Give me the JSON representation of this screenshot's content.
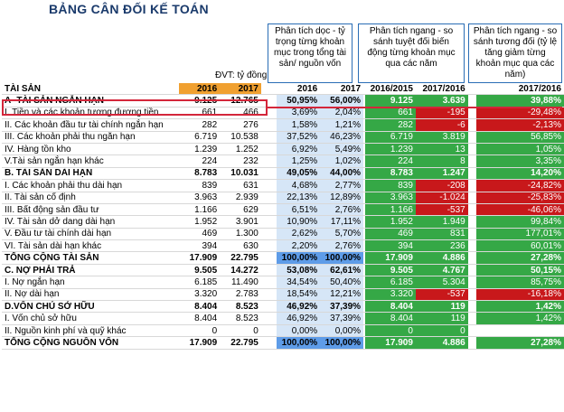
{
  "title": "BẢNG CÂN ĐỐI KẾ TOÁN",
  "unit_note": "ĐVT: tỷ đồng",
  "headers": {
    "vertical": "Phân tích dọc - tỷ trọng từng khoản mục trong tổng tài sản/ nguồn vốn",
    "horizontal_abs": "Phân tích ngang - so sánh tuyệt đối biến động từng khoản mục qua các năm",
    "horizontal_rel": "Phân tích ngang - so sánh tương đối (tỷ lệ tăng giảm từng khoản mục qua các năm)"
  },
  "columns": [
    "TÀI SẢN",
    "2016",
    "2017",
    "2016",
    "2017",
    "2016/2015",
    "2017/2016",
    "2017/2016"
  ],
  "rows": [
    {
      "label": "A- TÀI SẢN NGẮN HẠN",
      "v16": "9.125",
      "v17": "12.765",
      "p16": "50,95%",
      "p17": "56,00%",
      "a1": "9.125",
      "a2": "3.639",
      "r": "39,88%",
      "bold": true,
      "a2neg": false,
      "rneg": false
    },
    {
      "label": "I. Tiền và các khoản tương đương tiền",
      "v16": "661",
      "v17": "466",
      "p16": "3,69%",
      "p17": "2,04%",
      "a1": "661",
      "a2": "-195",
      "r": "-29,48%",
      "bold": false,
      "a2neg": true,
      "rneg": true
    },
    {
      "label": "II. Các khoản đầu tư tài chính ngắn hạn",
      "v16": "282",
      "v17": "276",
      "p16": "1,58%",
      "p17": "1,21%",
      "a1": "282",
      "a2": "-6",
      "r": "-2,13%",
      "bold": false,
      "a2neg": true,
      "rneg": true
    },
    {
      "label": "III. Các khoản phải thu ngắn hạn",
      "v16": "6.719",
      "v17": "10.538",
      "p16": "37,52%",
      "p17": "46,23%",
      "a1": "6.719",
      "a2": "3.819",
      "r": "56,85%",
      "bold": false,
      "a2neg": false,
      "rneg": false
    },
    {
      "label": "IV. Hàng tồn kho",
      "v16": "1.239",
      "v17": "1.252",
      "p16": "6,92%",
      "p17": "5,49%",
      "a1": "1.239",
      "a2": "13",
      "r": "1,05%",
      "bold": false,
      "a2neg": false,
      "rneg": false
    },
    {
      "label": "V.Tài sản ngắn hạn khác",
      "v16": "224",
      "v17": "232",
      "p16": "1,25%",
      "p17": "1,02%",
      "a1": "224",
      "a2": "8",
      "r": "3,35%",
      "bold": false,
      "a2neg": false,
      "rneg": false
    },
    {
      "label": "B. TÀI SẢN DÀI HẠN",
      "v16": "8.783",
      "v17": "10.031",
      "p16": "49,05%",
      "p17": "44,00%",
      "a1": "8.783",
      "a2": "1.247",
      "r": "14,20%",
      "bold": true,
      "a2neg": false,
      "rneg": false
    },
    {
      "label": "I. Các khoản phải thu dài hạn",
      "v16": "839",
      "v17": "631",
      "p16": "4,68%",
      "p17": "2,77%",
      "a1": "839",
      "a2": "-208",
      "r": "-24,82%",
      "bold": false,
      "a2neg": true,
      "rneg": true
    },
    {
      "label": "II. Tài sản cố định",
      "v16": "3.963",
      "v17": "2.939",
      "p16": "22,13%",
      "p17": "12,89%",
      "a1": "3.963",
      "a2": "-1.024",
      "r": "-25,83%",
      "bold": false,
      "a2neg": true,
      "rneg": true
    },
    {
      "label": "III. Bất động sản đầu tư",
      "v16": "1.166",
      "v17": "629",
      "p16": "6,51%",
      "p17": "2,76%",
      "a1": "1.166",
      "a2": "-537",
      "r": "-46,06%",
      "bold": false,
      "a2neg": true,
      "rneg": true
    },
    {
      "label": "IV. Tài sản dở dang dài hạn",
      "v16": "1.952",
      "v17": "3.901",
      "p16": "10,90%",
      "p17": "17,11%",
      "a1": "1.952",
      "a2": "1.949",
      "r": "99,84%",
      "bold": false,
      "a2neg": false,
      "rneg": false
    },
    {
      "label": "V. Đầu tư tài chính dài hạn",
      "v16": "469",
      "v17": "1.300",
      "p16": "2,62%",
      "p17": "5,70%",
      "a1": "469",
      "a2": "831",
      "r": "177,01%",
      "bold": false,
      "a2neg": false,
      "rneg": false
    },
    {
      "label": "VI. Tài sản dài hạn khác",
      "v16": "394",
      "v17": "630",
      "p16": "2,20%",
      "p17": "2,76%",
      "a1": "394",
      "a2": "236",
      "r": "60,01%",
      "bold": false,
      "a2neg": false,
      "rneg": false
    },
    {
      "label": "TỔNG CỘNG TÀI SẢN",
      "v16": "17.909",
      "v17": "22.795",
      "p16": "100,00%",
      "p17": "100,00%",
      "a1": "17.909",
      "a2": "4.886",
      "r": "27,28%",
      "bold": true,
      "a2neg": false,
      "rneg": false,
      "total": true
    },
    {
      "label": "C. NỢ PHẢI TRẢ",
      "v16": "9.505",
      "v17": "14.272",
      "p16": "53,08%",
      "p17": "62,61%",
      "a1": "9.505",
      "a2": "4.767",
      "r": "50,15%",
      "bold": true,
      "a2neg": false,
      "rneg": false
    },
    {
      "label": "I. Nợ ngắn hạn",
      "v16": "6.185",
      "v17": "11.490",
      "p16": "34,54%",
      "p17": "50,40%",
      "a1": "6.185",
      "a2": "5.304",
      "r": "85,75%",
      "bold": false,
      "a2neg": false,
      "rneg": false
    },
    {
      "label": "II. Nợ dài hạn",
      "v16": "3.320",
      "v17": "2.783",
      "p16": "18,54%",
      "p17": "12,21%",
      "a1": "3.320",
      "a2": "-537",
      "r": "-16,18%",
      "bold": false,
      "a2neg": true,
      "rneg": true
    },
    {
      "label": "D.VỐN CHỦ SỞ HỮU",
      "v16": "8.404",
      "v17": "8.523",
      "p16": "46,92%",
      "p17": "37,39%",
      "a1": "8.404",
      "a2": "119",
      "r": "1,42%",
      "bold": true,
      "a2neg": false,
      "rneg": false
    },
    {
      "label": "I. Vốn chủ sở hữu",
      "v16": "8.404",
      "v17": "8.523",
      "p16": "46,92%",
      "p17": "37,39%",
      "a1": "8.404",
      "a2": "119",
      "r": "1,42%",
      "bold": false,
      "a2neg": false,
      "rneg": false
    },
    {
      "label": "II. Nguồn kinh phí và quỹ khác",
      "v16": "0",
      "v17": "0",
      "p16": "0,00%",
      "p17": "0,00%",
      "a1": "0",
      "a2": "0",
      "r": "",
      "bold": false,
      "a2neg": false,
      "rneg": false,
      "blank": true
    },
    {
      "label": "TỔNG CỘNG NGUỒN VỐN",
      "v16": "17.909",
      "v17": "22.795",
      "p16": "100,00%",
      "p17": "100,00%",
      "a1": "17.909",
      "a2": "4.886",
      "r": "27,28%",
      "bold": true,
      "a2neg": false,
      "rneg": false,
      "total": true
    }
  ]
}
